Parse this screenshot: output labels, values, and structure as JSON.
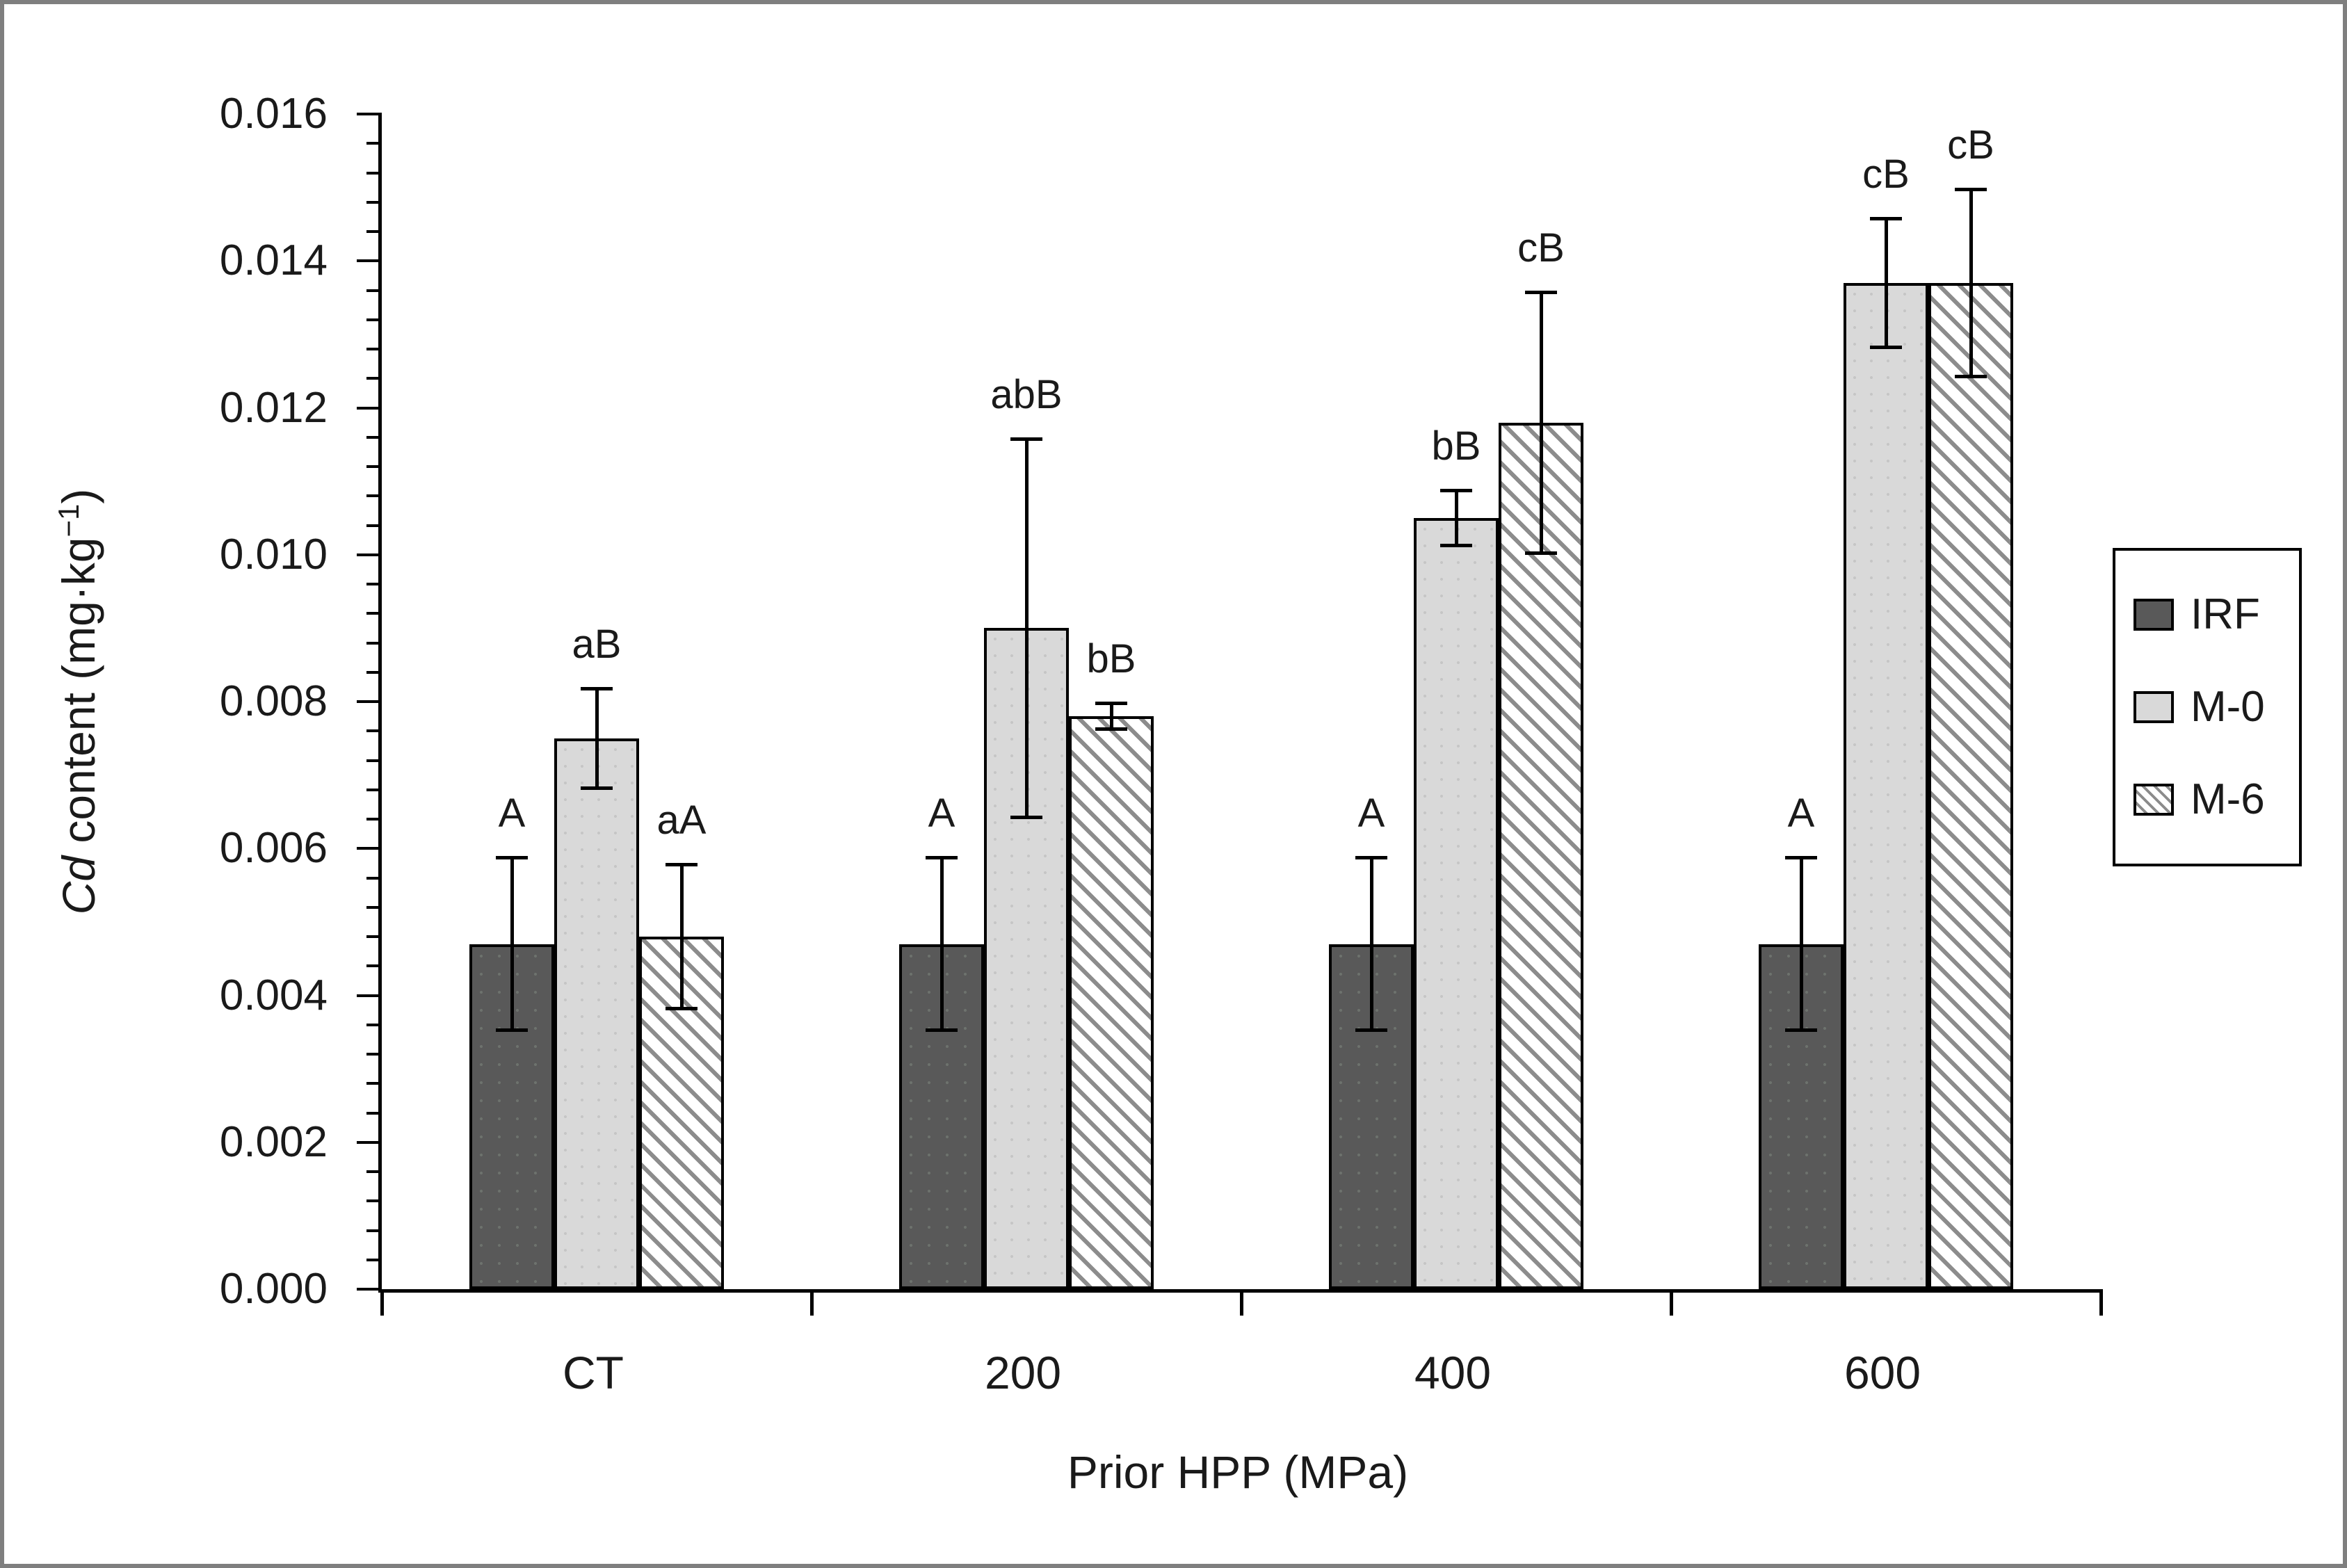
{
  "figure": {
    "frame_color": "#7f7f7f",
    "background": "#ffffff"
  },
  "chart_data": {
    "type": "bar",
    "title": "",
    "xlabel": "Prior HPP (MPa)",
    "ylabel": "Cd content (mg·kg−1)",
    "ylabel_parts": {
      "italic": "Cd",
      "text": " content (mg·kg",
      "superscript": "−1",
      "closing": ")"
    },
    "categories": [
      "CT",
      "200",
      "400",
      "600"
    ],
    "ylim": [
      0,
      0.016
    ],
    "ytick_major_step": 0.002,
    "ytick_minor_step": 0.0004,
    "ytick_label_decimals": 3,
    "grid": false,
    "legend_position": "right",
    "series": [
      {
        "name": "IRF",
        "style": "solid-dark",
        "color": "#595959",
        "values": [
          0.0047,
          0.0047,
          0.0047,
          0.0047
        ],
        "errors": [
          0.0012,
          0.0012,
          0.0012,
          0.0012
        ],
        "sig_labels": [
          "A",
          "A",
          "A",
          "A"
        ]
      },
      {
        "name": "M-0",
        "style": "solid-light",
        "color": "#d9d9d9",
        "values": [
          0.0075,
          0.009,
          0.0105,
          0.0137
        ],
        "errors": [
          0.0007,
          0.0026,
          0.0004,
          0.0009
        ],
        "sig_labels": [
          "aB",
          "abB",
          "bB",
          "cB"
        ]
      },
      {
        "name": "M-6",
        "style": "hatched",
        "color": "#ffffff",
        "hatch_color": "#8c8c8c",
        "values": [
          0.0048,
          0.0078,
          0.0118,
          0.0137
        ],
        "errors": [
          0.001,
          0.0002,
          0.0018,
          0.0013
        ],
        "sig_labels": [
          "aA",
          "bB",
          "cB",
          "cB"
        ]
      }
    ]
  },
  "legend": {
    "items": [
      "IRF",
      "M-0",
      "M-6"
    ]
  }
}
